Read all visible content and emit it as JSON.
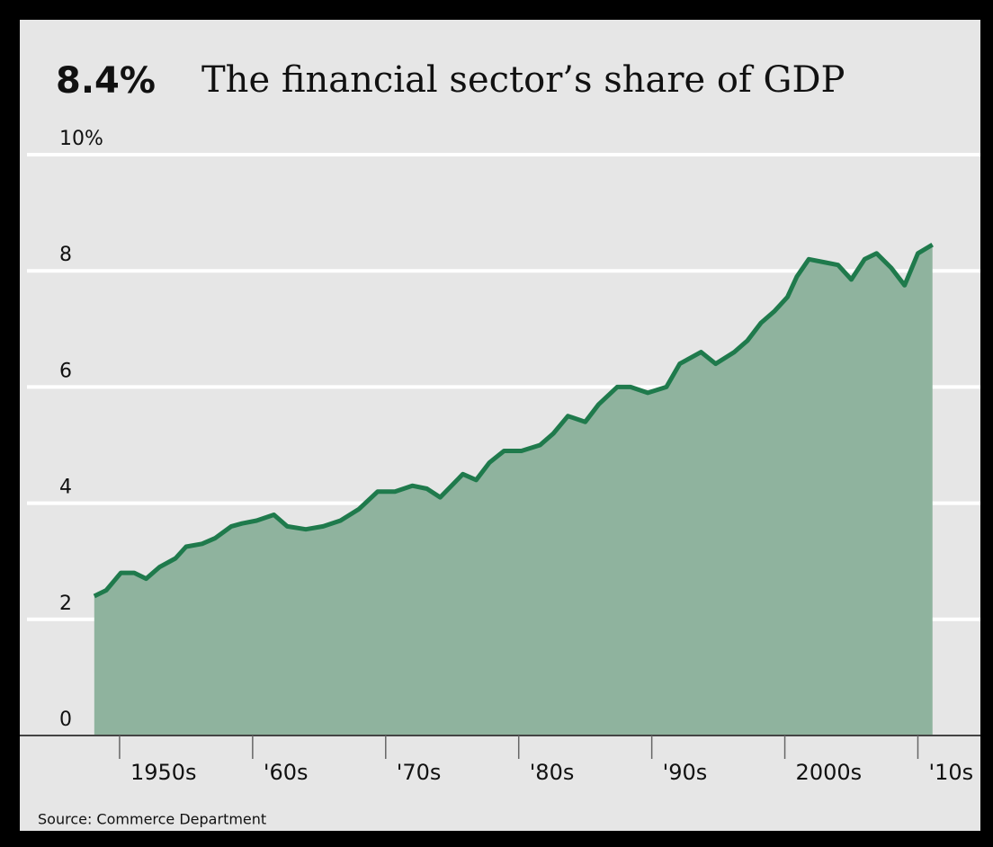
{
  "chart_data": {
    "type": "area",
    "highlight": "8.4%",
    "title": "The financial sector’s share of GDP",
    "source": "Source: Commerce Department",
    "x": [
      1948.1,
      1949,
      1950.1,
      1951.1,
      1952,
      1953,
      1954.2,
      1955,
      1956.2,
      1957.2,
      1958.4,
      1959.2,
      1960.3,
      1961.6,
      1962.6,
      1964,
      1965.3,
      1966.6,
      1968,
      1969.4,
      1970.7,
      1972,
      1973.1,
      1974.1,
      1975.8,
      1976.8,
      1977.8,
      1978.9,
      1980.2,
      1981.6,
      1982.6,
      1983.7,
      1985,
      1986,
      1987.4,
      1988.4,
      1989.7,
      1991.1,
      1992.1,
      1993.7,
      1994.8,
      1996.2,
      1997.2,
      1998.2,
      1999.2,
      2000.2,
      2000.9,
      2001.8,
      2002.9,
      2004,
      2005,
      2006,
      2006.9,
      2008,
      2009,
      2010,
      2011.1
    ],
    "values": [
      2.4,
      2.5,
      2.8,
      2.8,
      2.7,
      2.9,
      3.05,
      3.25,
      3.3,
      3.4,
      3.6,
      3.65,
      3.7,
      3.8,
      3.6,
      3.55,
      3.6,
      3.7,
      3.9,
      4.2,
      4.2,
      4.3,
      4.25,
      4.1,
      4.5,
      4.4,
      4.7,
      4.9,
      4.9,
      5.0,
      5.2,
      5.5,
      5.4,
      5.7,
      6.0,
      6.0,
      5.9,
      6.0,
      6.4,
      6.6,
      6.4,
      6.6,
      6.8,
      7.1,
      7.3,
      7.55,
      7.9,
      8.2,
      8.15,
      8.1,
      7.85,
      8.2,
      8.3,
      8.05,
      7.75,
      8.3,
      8.45
    ],
    "line_color": "#1f7a4c",
    "fill_color": "#8fb39e",
    "xlim": [
      1942.5,
      2014.7
    ],
    "xticks": [
      {
        "value": 1950,
        "label": "1950s"
      },
      {
        "value": 1960,
        "label": "'60s"
      },
      {
        "value": 1970,
        "label": "'70s"
      },
      {
        "value": 1980,
        "label": "'80s"
      },
      {
        "value": 1990,
        "label": "'90s"
      },
      {
        "value": 2000,
        "label": "2000s"
      },
      {
        "value": 2010,
        "label": "'10s"
      }
    ],
    "ylim": [
      0,
      10
    ],
    "yticks": [
      0,
      2,
      4,
      6,
      8,
      {
        "value": 10,
        "label": "10%"
      }
    ],
    "grid": true
  }
}
